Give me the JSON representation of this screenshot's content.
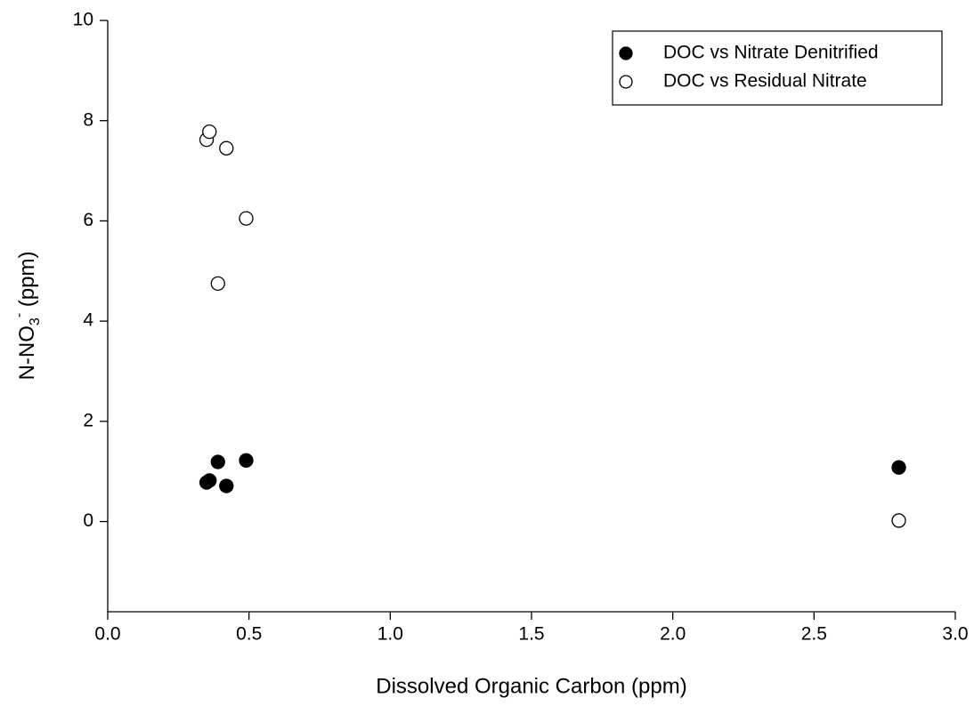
{
  "chart_data": {
    "type": "scatter",
    "x_label": "Dissolved Organic Carbon (ppm)",
    "y_label": {
      "text": "N-NO",
      "subscript": "3",
      "superscript": "-",
      "unit": " (ppm)"
    },
    "x": [
      0.35,
      0.36,
      0.39,
      0.42,
      0.49,
      2.8
    ],
    "series": [
      {
        "name": "DOC vs Nitrate Denitrified",
        "color": "#000000",
        "fill": "#000000",
        "values": [
          0.78,
          0.82,
          1.19,
          0.71,
          1.22,
          1.08
        ]
      },
      {
        "name": "DOC vs Residual Nitrate",
        "color": "#000000",
        "fill": "#ffffff",
        "values": [
          7.62,
          7.78,
          4.75,
          7.45,
          6.05,
          0.02
        ]
      }
    ],
    "xlim": [
      0,
      3
    ],
    "ylim": [
      -1.8,
      10
    ],
    "xticks": [
      {
        "value": 0,
        "label": "0.0"
      },
      0.5,
      {
        "value": 1,
        "label": "1.0"
      },
      1.5,
      {
        "value": 2,
        "label": "2.0"
      },
      2.5,
      {
        "value": 3,
        "label": "3.0"
      }
    ],
    "yticks": [
      0,
      2,
      4,
      6,
      8,
      10
    ],
    "grid": false,
    "legend": "upper right"
  }
}
